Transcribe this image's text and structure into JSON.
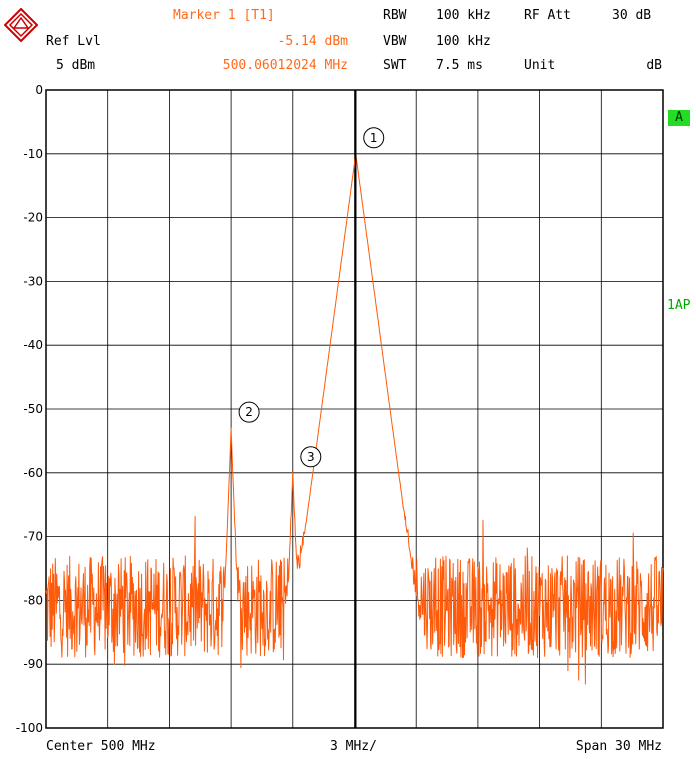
{
  "header": {
    "ref_lvl_label": "Ref Lvl",
    "ref_lvl_value": "5 dBm",
    "marker_label": "Marker 1 [T1]",
    "marker_level": "-5.14 dBm",
    "marker_freq": "500.06012024 MHz",
    "rbw_label": "RBW",
    "rbw_value": "100 kHz",
    "vbw_label": "VBW",
    "vbw_value": "100 kHz",
    "swt_label": "SWT",
    "swt_value": "7.5 ms",
    "rfatt_label": "RF Att",
    "rfatt_value": "30 dB",
    "unit_label": "Unit",
    "unit_value": "dB"
  },
  "side": {
    "trace_badge": "A",
    "detector": "1AP"
  },
  "footer": {
    "center": "Center 500 MHz",
    "div": "3 MHz/",
    "span": "Span 30 MHz"
  },
  "colors": {
    "trace": "#ff5a0a",
    "marker_text": "#ff6a1a",
    "badge": "#22dd22",
    "grid": "#000000"
  },
  "chart_data": {
    "type": "line",
    "x_unit": "MHz",
    "y_unit": "dB",
    "xlim": [
      485,
      515
    ],
    "ylim": [
      -100,
      0
    ],
    "grid": true,
    "y_ticks": [
      0,
      -10,
      -20,
      -30,
      -40,
      -50,
      -60,
      -70,
      -80,
      -90,
      -100
    ],
    "y_tick_labels": [
      "0",
      "-10",
      "-20",
      "-30",
      "-40",
      "-50",
      "-60",
      "-70",
      "-80",
      "-90",
      "-100"
    ],
    "noise_floor": -81,
    "peaks": [
      {
        "x": 500.06,
        "y": -10
      },
      {
        "x": 494.0,
        "y": -53
      },
      {
        "x": 497.0,
        "y": -60
      }
    ],
    "markers": [
      {
        "label": "1",
        "x": 500.06,
        "y": -10
      },
      {
        "label": "2",
        "x": 494.0,
        "y": -53
      },
      {
        "label": "3",
        "x": 497.0,
        "y": -60
      }
    ]
  }
}
